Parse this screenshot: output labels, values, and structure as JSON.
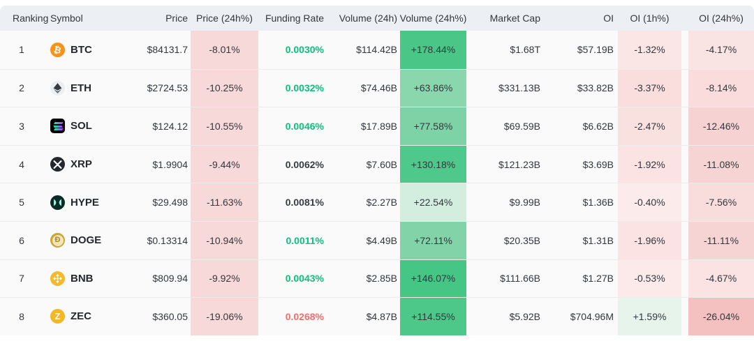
{
  "header": {
    "columns": [
      {
        "id": "ranking",
        "label": "Ranking"
      },
      {
        "id": "symbol",
        "label": "Symbol"
      },
      {
        "id": "price",
        "label": "Price"
      },
      {
        "id": "price_24h",
        "label": "Price (24h%)"
      },
      {
        "id": "funding_rate",
        "label": "Funding Rate"
      },
      {
        "id": "volume_24h",
        "label": "Volume (24h)"
      },
      {
        "id": "volume_24h_pct",
        "label": "Volume (24h%)"
      },
      {
        "id": "market_cap",
        "label": "Market Cap"
      },
      {
        "id": "oi",
        "label": "OI"
      },
      {
        "id": "oi_1h",
        "label": "OI (1h%)"
      },
      {
        "id": "oi_24h",
        "label": "OI (24h%)"
      }
    ]
  },
  "colors": {
    "header_bg": "#ECEFF3",
    "row_bg": "#FAFAFA",
    "divider": "#ECECEC",
    "price24_bg": "#F8D9D9",
    "funding_green": "#0BBF7D",
    "funding_red": "#F56D6D",
    "funding_dark": "#383C42"
  },
  "rows": [
    {
      "ranking": "1",
      "symbol": "BTC",
      "icon": {
        "name": "btc-icon",
        "shape": "circle",
        "bg": "#F7931A",
        "fg": "#FFFFFF",
        "glyph": "₿",
        "rotate": true
      },
      "price": "$84131.7",
      "price_24h": "-8.01%",
      "funding_rate": "0.0030%",
      "funding_tone": "green",
      "volume_24h": "$114.42B",
      "volume_24h_pct": "+178.44%",
      "volume_pct_bg": "#4AC787",
      "market_cap": "$1.68T",
      "oi": "$57.19B",
      "oi_1h": "-1.32%",
      "oi_1h_bg": "#FAE6E5",
      "oi_24h": "-4.17%",
      "oi_24h_bg": "#FAE4E3"
    },
    {
      "ranking": "2",
      "symbol": "ETH",
      "icon": {
        "name": "eth-icon",
        "shape": "eth",
        "bg": "#ECEFF1"
      },
      "price": "$2724.53",
      "price_24h": "-10.25%",
      "funding_rate": "0.0032%",
      "funding_tone": "green",
      "volume_24h": "$74.46B",
      "volume_24h_pct": "+63.86%",
      "volume_pct_bg": "#8AD7AE",
      "market_cap": "$331.13B",
      "oi": "$33.82B",
      "oi_1h": "-3.37%",
      "oi_1h_bg": "#F9DEDD",
      "oi_24h": "-8.14%",
      "oi_24h_bg": "#F9DCDB"
    },
    {
      "ranking": "3",
      "symbol": "SOL",
      "icon": {
        "name": "sol-icon",
        "shape": "sol",
        "bg": "#000000"
      },
      "price": "$124.12",
      "price_24h": "-10.55%",
      "funding_rate": "0.0046%",
      "funding_tone": "green",
      "volume_24h": "$17.89B",
      "volume_24h_pct": "+77.58%",
      "volume_pct_bg": "#7DD3A6",
      "market_cap": "$69.59B",
      "oi": "$6.62B",
      "oi_1h": "-2.47%",
      "oi_1h_bg": "#F9E1E0",
      "oi_24h": "-12.46%",
      "oi_24h_bg": "#F7D2D2"
    },
    {
      "ranking": "4",
      "symbol": "XRP",
      "icon": {
        "name": "xrp-icon",
        "shape": "xrp",
        "bg": "#23292F",
        "fg": "#FFFFFF"
      },
      "price": "$1.9904",
      "price_24h": "-9.44%",
      "funding_rate": "0.0062%",
      "funding_tone": "dark",
      "volume_24h": "$7.60B",
      "volume_24h_pct": "+130.18%",
      "volume_pct_bg": "#4FC98B",
      "market_cap": "$121.23B",
      "oi": "$3.69B",
      "oi_1h": "-1.92%",
      "oi_1h_bg": "#FAE3E2",
      "oi_24h": "-11.08%",
      "oi_24h_bg": "#F7D4D4"
    },
    {
      "ranking": "5",
      "symbol": "HYPE",
      "icon": {
        "name": "hype-icon",
        "shape": "hype",
        "bg": "#0B2B26",
        "fg": "#98FCE4"
      },
      "price": "$29.498",
      "price_24h": "-11.63%",
      "funding_rate": "0.0081%",
      "funding_tone": "dark",
      "volume_24h": "$2.27B",
      "volume_24h_pct": "+22.54%",
      "volume_pct_bg": "#D3EEDF",
      "market_cap": "$9.99B",
      "oi": "$1.36B",
      "oi_1h": "-0.40%",
      "oi_1h_bg": "#FBECEB",
      "oi_24h": "-7.56%",
      "oi_24h_bg": "#F9DDDC"
    },
    {
      "ranking": "6",
      "symbol": "DOGE",
      "icon": {
        "name": "doge-icon",
        "shape": "doge",
        "bg": "#C9A63A",
        "inner": "#F2E5B8",
        "fg": "#A88A28",
        "glyph": "Ð"
      },
      "price": "$0.13314",
      "price_24h": "-10.94%",
      "funding_rate": "0.0011%",
      "funding_tone": "green",
      "volume_24h": "$4.49B",
      "volume_24h_pct": "+72.11%",
      "volume_pct_bg": "#82D4A8",
      "market_cap": "$20.35B",
      "oi": "$1.31B",
      "oi_1h": "-1.96%",
      "oi_1h_bg": "#FAE3E2",
      "oi_24h": "-11.11%",
      "oi_24h_bg": "#F7D4D4"
    },
    {
      "ranking": "7",
      "symbol": "BNB",
      "icon": {
        "name": "bnb-icon",
        "shape": "bnb",
        "bg": "#F3BA2F",
        "fg": "#FFFFFF"
      },
      "price": "$809.94",
      "price_24h": "-9.92%",
      "funding_rate": "0.0043%",
      "funding_tone": "green",
      "volume_24h": "$2.85B",
      "volume_24h_pct": "+146.07%",
      "volume_pct_bg": "#46C684",
      "market_cap": "$111.66B",
      "oi": "$1.27B",
      "oi_1h": "-0.53%",
      "oi_1h_bg": "#FBEAE9",
      "oi_24h": "-4.67%",
      "oi_24h_bg": "#FAE3E2"
    },
    {
      "ranking": "8",
      "symbol": "ZEC",
      "icon": {
        "name": "zec-icon",
        "shape": "circle",
        "bg": "#F4B728",
        "fg": "#FFFFFF",
        "glyph": "Z"
      },
      "price": "$360.05",
      "price_24h": "-19.06%",
      "funding_rate": "0.0268%",
      "funding_tone": "red",
      "volume_24h": "$4.87B",
      "volume_24h_pct": "+114.55%",
      "volume_pct_bg": "#4DC889",
      "market_cap": "$5.92B",
      "oi": "$704.96M",
      "oi_1h": "+1.59%",
      "oi_1h_bg": "#E6F4EC",
      "oi_24h": "-26.04%",
      "oi_24h_bg": "#F4C1C0"
    }
  ]
}
